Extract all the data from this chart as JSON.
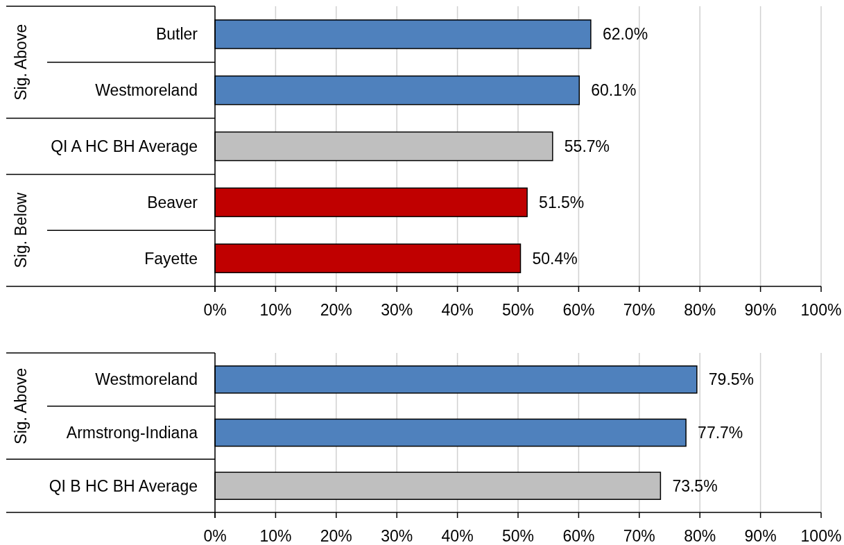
{
  "chart_data": [
    {
      "type": "bar",
      "orientation": "horizontal",
      "categories": [
        "Butler",
        "Westmoreland",
        "QI A HC BH Average",
        "Beaver",
        "Fayette"
      ],
      "values": [
        62.0,
        60.1,
        55.7,
        51.5,
        50.4
      ],
      "colors": [
        "#4f81bd",
        "#4f81bd",
        "#bfbfbf",
        "#c00000",
        "#c00000"
      ],
      "value_labels": [
        "62.0%",
        "60.1%",
        "55.7%",
        "51.5%",
        "50.4%"
      ],
      "xlim": [
        0,
        100
      ],
      "xticks": [
        {
          "value": 0,
          "label": "0%"
        },
        {
          "value": 10,
          "label": "10%"
        },
        {
          "value": 20,
          "label": "20%"
        },
        {
          "value": 30,
          "label": "30%"
        },
        {
          "value": 40,
          "label": "40%"
        },
        {
          "value": 50,
          "label": "50%"
        },
        {
          "value": 60,
          "label": "60%"
        },
        {
          "value": 70,
          "label": "70%"
        },
        {
          "value": 80,
          "label": "80%"
        },
        {
          "value": 90,
          "label": "90%"
        },
        {
          "value": 100,
          "label": "100%"
        }
      ],
      "grid": "x",
      "annotations": [
        "Sig. Above",
        "Sig. Below"
      ]
    },
    {
      "type": "bar",
      "orientation": "horizontal",
      "categories": [
        "Westmoreland",
        "Armstrong-Indiana",
        "QI B HC BH Average"
      ],
      "values": [
        79.5,
        77.7,
        73.5
      ],
      "colors": [
        "#4f81bd",
        "#4f81bd",
        "#bfbfbf"
      ],
      "value_labels": [
        "79.5%",
        "77.7%",
        "73.5%"
      ],
      "xlim": [
        0,
        100
      ],
      "xticks": [
        {
          "value": 0,
          "label": "0%"
        },
        {
          "value": 10,
          "label": "10%"
        },
        {
          "value": 20,
          "label": "20%"
        },
        {
          "value": 30,
          "label": "30%"
        },
        {
          "value": 40,
          "label": "40%"
        },
        {
          "value": 50,
          "label": "50%"
        },
        {
          "value": 60,
          "label": "60%"
        },
        {
          "value": 70,
          "label": "70%"
        },
        {
          "value": 80,
          "label": "80%"
        },
        {
          "value": 90,
          "label": "90%"
        },
        {
          "value": 100,
          "label": "100%"
        }
      ],
      "grid": "x",
      "annotations": [
        "Sig. Above"
      ]
    }
  ]
}
